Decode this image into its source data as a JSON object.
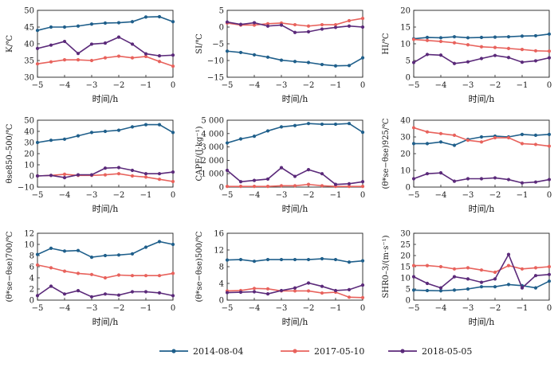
{
  "legend": [
    {
      "name": "2014-08-04",
      "color": "#1f5f8b"
    },
    {
      "name": "2017-05-10",
      "color": "#e8625c"
    },
    {
      "name": "2018-05-05",
      "color": "#5b2a7a"
    }
  ],
  "chart_data": [
    {
      "type": "line",
      "ylabel": "K/℃",
      "xlabel": "时间/h",
      "x": [
        -5,
        -4.5,
        -4,
        -3.5,
        -3,
        -2.5,
        -2,
        -1.5,
        -1,
        -0.5,
        0
      ],
      "xlim": [
        -5,
        0
      ],
      "ylim": [
        30,
        50
      ],
      "xticks": [
        -5,
        -4,
        -3,
        -2,
        -1,
        0
      ],
      "yticks": [
        30,
        35,
        40,
        45,
        50
      ],
      "series": [
        {
          "name": "2014-08-04",
          "values": [
            44.0,
            45.0,
            45.0,
            45.3,
            45.9,
            46.2,
            46.3,
            46.6,
            48.0,
            48.1,
            46.6
          ]
        },
        {
          "name": "2017-05-10",
          "values": [
            34.0,
            34.6,
            35.2,
            35.2,
            35.0,
            35.8,
            36.3,
            35.8,
            36.2,
            34.7,
            33.3
          ]
        },
        {
          "name": "2018-05-05",
          "values": [
            38.6,
            39.6,
            40.7,
            37.1,
            39.9,
            40.2,
            42.0,
            39.9,
            37.0,
            36.4,
            36.6
          ]
        }
      ]
    },
    {
      "type": "line",
      "ylabel": "SI/℃",
      "xlabel": "时间/h",
      "x": [
        -5,
        -4.5,
        -4,
        -3.5,
        -3,
        -2.5,
        -2,
        -1.5,
        -1,
        -0.5,
        0
      ],
      "xlim": [
        -5,
        0
      ],
      "ylim": [
        -15,
        5
      ],
      "xticks": [
        -5,
        -4,
        -3,
        -2,
        -1,
        0
      ],
      "yticks": [
        -15,
        -10,
        -5,
        0,
        5
      ],
      "series": [
        {
          "name": "2014-08-04",
          "values": [
            -7.2,
            -7.6,
            -8.3,
            -9.0,
            -9.9,
            -10.3,
            -10.6,
            -11.2,
            -11.6,
            -11.5,
            -9.2
          ]
        },
        {
          "name": "2017-05-10",
          "values": [
            1.2,
            0.6,
            0.6,
            1.0,
            1.2,
            0.7,
            0.3,
            0.7,
            0.7,
            1.9,
            2.6
          ]
        },
        {
          "name": "2018-05-05",
          "values": [
            1.5,
            0.8,
            1.3,
            0.3,
            0.6,
            -1.6,
            -1.4,
            -0.6,
            -0.1,
            0.3,
            0.0
          ]
        }
      ]
    },
    {
      "type": "line",
      "ylabel": "HI/℃",
      "xlabel": "时间/h",
      "x": [
        -5,
        -4.5,
        -4,
        -3.5,
        -3,
        -2.5,
        -2,
        -1.5,
        -1,
        -0.5,
        0
      ],
      "xlim": [
        -5,
        0
      ],
      "ylim": [
        0,
        20
      ],
      "xticks": [
        -5,
        -4,
        -3,
        -2,
        -1,
        0
      ],
      "yticks": [
        0,
        5,
        10,
        15,
        20
      ],
      "series": [
        {
          "name": "2014-08-04",
          "values": [
            11.5,
            11.9,
            11.8,
            12.1,
            11.8,
            11.9,
            12.0,
            12.1,
            12.3,
            12.4,
            12.9
          ]
        },
        {
          "name": "2017-05-10",
          "values": [
            11.3,
            11.0,
            10.7,
            10.3,
            9.7,
            9.1,
            8.9,
            8.6,
            8.3,
            7.9,
            7.8
          ]
        },
        {
          "name": "2018-05-05",
          "values": [
            4.4,
            6.8,
            6.6,
            4.1,
            4.6,
            5.6,
            6.5,
            5.9,
            4.5,
            4.9,
            5.8
          ]
        }
      ]
    },
    {
      "type": "line",
      "ylabel": "θse850–500/℃",
      "xlabel": "时间/h",
      "x": [
        -5,
        -4.5,
        -4,
        -3.5,
        -3,
        -2.5,
        -2,
        -1.5,
        -1,
        -0.5,
        0
      ],
      "xlim": [
        -5,
        0
      ],
      "ylim": [
        -10,
        50
      ],
      "xticks": [
        -5,
        -4,
        -3,
        -2,
        -1,
        0
      ],
      "yticks": [
        -10,
        0,
        10,
        20,
        30,
        40,
        50
      ],
      "series": [
        {
          "name": "2014-08-04",
          "values": [
            30.0,
            32.0,
            33.0,
            36.0,
            39.0,
            40.0,
            41.0,
            44.0,
            46.0,
            46.0,
            39.0
          ]
        },
        {
          "name": "2017-05-10",
          "values": [
            0.0,
            0.5,
            1.5,
            0.5,
            0.5,
            1.0,
            2.0,
            0.0,
            -1.0,
            -3.0,
            -5.0
          ]
        },
        {
          "name": "2018-05-05",
          "values": [
            0.0,
            0.5,
            -1.5,
            1.0,
            1.0,
            7.0,
            7.5,
            5.0,
            2.0,
            2.0,
            3.5
          ]
        }
      ]
    },
    {
      "type": "line",
      "ylabel": "CAPE/(J·kg⁻¹)",
      "xlabel": "时间/h",
      "x": [
        -5,
        -4.5,
        -4,
        -3.5,
        -3,
        -2.5,
        -2,
        -1.5,
        -1,
        -0.5,
        0
      ],
      "xlim": [
        -5,
        0
      ],
      "ylim": [
        0,
        5000
      ],
      "xticks": [
        -5,
        -4,
        -3,
        -2,
        -1,
        0
      ],
      "yticks": [
        0,
        1000,
        2000,
        3000,
        4000,
        5000
      ],
      "yticklabels": [
        "0",
        "1 000",
        "2 000",
        "3 000",
        "4 000",
        "5 000"
      ],
      "series": [
        {
          "name": "2014-08-04",
          "values": [
            3300,
            3600,
            3800,
            4200,
            4500,
            4600,
            4750,
            4700,
            4700,
            4750,
            4100
          ]
        },
        {
          "name": "2017-05-10",
          "values": [
            50,
            50,
            50,
            50,
            100,
            100,
            200,
            100,
            50,
            50,
            50
          ]
        },
        {
          "name": "2018-05-05",
          "values": [
            1250,
            400,
            500,
            600,
            1450,
            800,
            1300,
            1000,
            200,
            250,
            400
          ]
        }
      ]
    },
    {
      "type": "line",
      "ylabel": "(θ*se−θse)925/℃",
      "xlabel": "时间/h",
      "x": [
        -5,
        -4.5,
        -4,
        -3.5,
        -3,
        -2.5,
        -2,
        -1.5,
        -1,
        -0.5,
        0
      ],
      "xlim": [
        -5,
        0
      ],
      "ylim": [
        0,
        40
      ],
      "xticks": [
        -5,
        -4,
        -3,
        -2,
        -1,
        0
      ],
      "yticks": [
        0,
        10,
        20,
        30,
        40
      ],
      "series": [
        {
          "name": "2014-08-04",
          "values": [
            26.0,
            26.0,
            27.0,
            25.0,
            28.5,
            30.0,
            30.5,
            30.0,
            31.5,
            31.0,
            31.5
          ]
        },
        {
          "name": "2017-05-10",
          "values": [
            35.5,
            33.0,
            32.0,
            31.0,
            28.0,
            27.0,
            29.5,
            29.5,
            26.0,
            25.5,
            24.5
          ]
        },
        {
          "name": "2018-05-05",
          "values": [
            5.0,
            8.0,
            8.5,
            3.5,
            5.0,
            5.0,
            5.5,
            4.5,
            2.5,
            3.0,
            4.5
          ]
        }
      ]
    },
    {
      "type": "line",
      "ylabel": "(θ*se−θse)700/℃",
      "xlabel": "时间/h",
      "x": [
        -5,
        -4.5,
        -4,
        -3.5,
        -3,
        -2.5,
        -2,
        -1.5,
        -1,
        -0.5,
        0
      ],
      "xlim": [
        -5,
        0
      ],
      "ylim": [
        0,
        12
      ],
      "xticks": [
        -5,
        -4,
        -3,
        -2,
        -1,
        0
      ],
      "yticks": [
        0,
        2,
        4,
        6,
        8,
        10,
        12
      ],
      "series": [
        {
          "name": "2014-08-04",
          "values": [
            8.2,
            9.3,
            8.8,
            8.9,
            7.7,
            8.0,
            8.1,
            8.3,
            9.5,
            10.5,
            10.0
          ]
        },
        {
          "name": "2017-05-10",
          "values": [
            6.3,
            5.8,
            5.2,
            4.8,
            4.6,
            4.0,
            4.5,
            4.4,
            4.4,
            4.4,
            4.8
          ]
        },
        {
          "name": "2018-05-05",
          "values": [
            0.8,
            2.5,
            1.1,
            1.7,
            0.6,
            1.1,
            0.9,
            1.5,
            1.5,
            1.3,
            0.8
          ]
        }
      ]
    },
    {
      "type": "line",
      "ylabel": "(θ*se−θse)500/℃",
      "xlabel": "时间/h",
      "x": [
        -5,
        -4.5,
        -4,
        -3.5,
        -3,
        -2.5,
        -2,
        -1.5,
        -1,
        -0.5,
        0
      ],
      "xlim": [
        -5,
        0
      ],
      "ylim": [
        0,
        16
      ],
      "xticks": [
        -5,
        -4,
        -3,
        -2,
        -1,
        0
      ],
      "yticks": [
        0,
        4,
        8,
        12,
        16
      ],
      "series": [
        {
          "name": "2014-08-04",
          "values": [
            9.6,
            9.7,
            9.3,
            9.7,
            9.7,
            9.7,
            9.7,
            9.9,
            9.7,
            9.1,
            9.4
          ]
        },
        {
          "name": "2017-05-10",
          "values": [
            2.2,
            2.3,
            2.8,
            2.7,
            2.2,
            2.2,
            2.2,
            1.7,
            1.9,
            0.7,
            0.6
          ]
        },
        {
          "name": "2018-05-05",
          "values": [
            1.8,
            1.9,
            2.0,
            1.5,
            2.3,
            2.9,
            4.1,
            3.3,
            2.3,
            2.5,
            3.6
          ]
        }
      ]
    },
    {
      "type": "line",
      "ylabel": "SHR0–3/(m·s⁻¹)",
      "xlabel": "时间/h",
      "x": [
        -5,
        -4.5,
        -4,
        -3.5,
        -3,
        -2.5,
        -2,
        -1.5,
        -1,
        -0.5,
        0
      ],
      "xlim": [
        -5,
        0
      ],
      "ylim": [
        0,
        30
      ],
      "xticks": [
        -5,
        -4,
        -3,
        -2,
        -1,
        0
      ],
      "yticks": [
        0,
        5,
        10,
        15,
        20,
        25,
        30
      ],
      "series": [
        {
          "name": "2014-08-04",
          "values": [
            4.5,
            4.3,
            4.2,
            4.5,
            5.0,
            6.0,
            6.0,
            7.0,
            6.5,
            5.5,
            8.5
          ]
        },
        {
          "name": "2017-05-10",
          "values": [
            15.5,
            15.5,
            15.0,
            14.0,
            14.5,
            13.5,
            12.5,
            15.5,
            14.0,
            14.5,
            15.0
          ]
        },
        {
          "name": "2018-05-05",
          "values": [
            10.5,
            7.5,
            5.5,
            10.5,
            9.5,
            8.0,
            9.5,
            20.5,
            5.5,
            11.0,
            11.5
          ]
        }
      ]
    }
  ]
}
